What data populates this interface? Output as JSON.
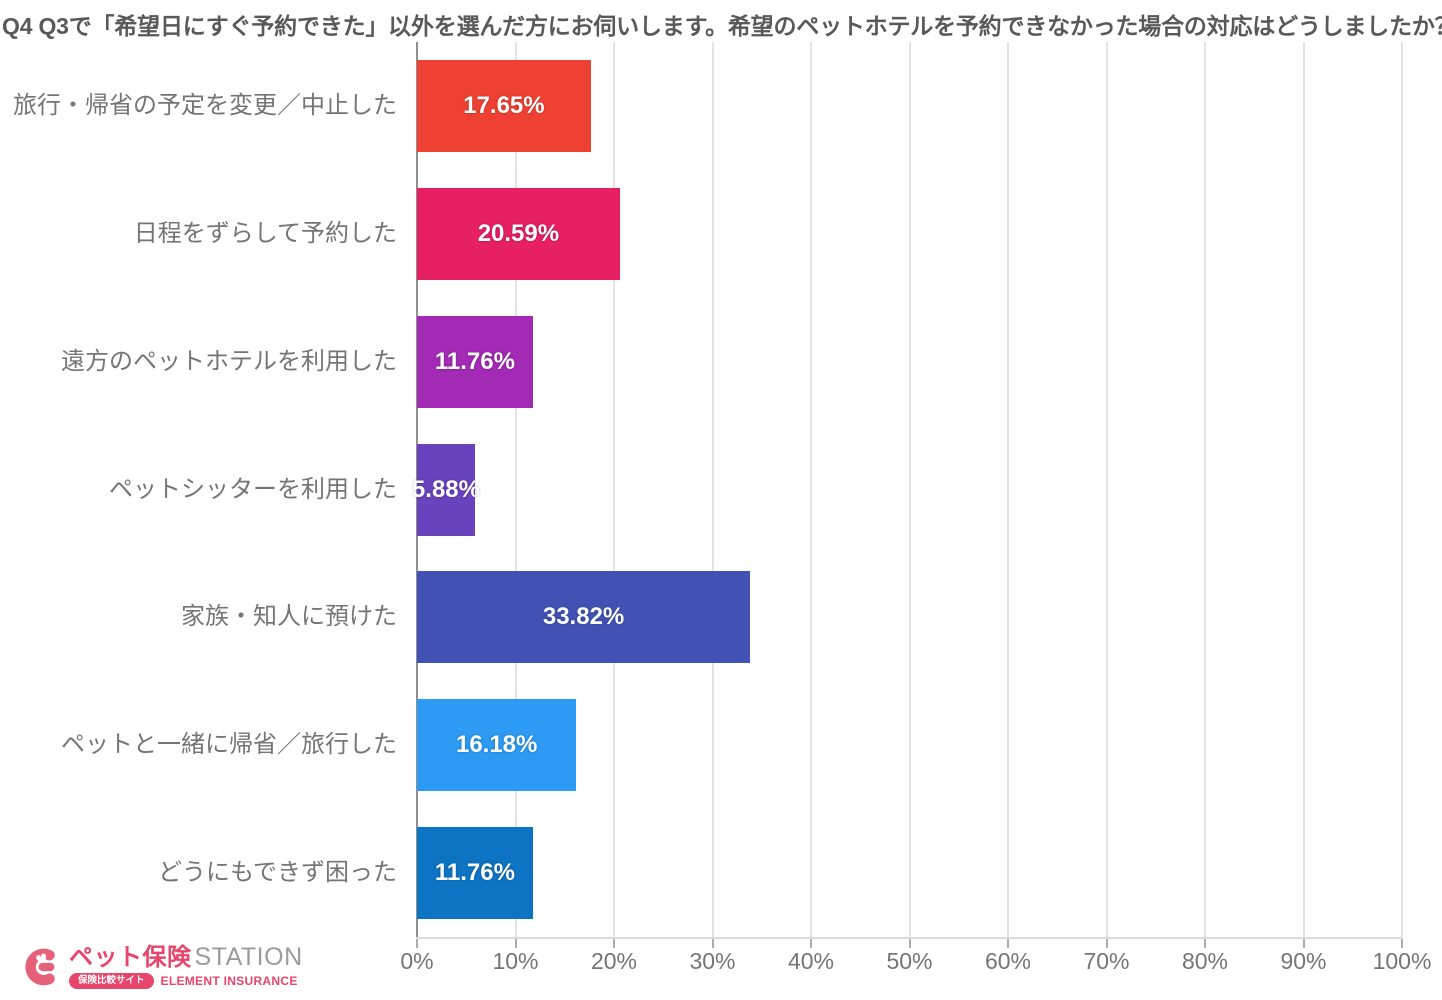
{
  "chart_data": {
    "type": "bar",
    "orientation": "horizontal",
    "title": "Q4 Q3で「希望日にすぐ予約できた」以外を選んだ方にお伺いします。希望のペットホテルを予約できなかった場合の対応はどうしましたか？",
    "categories": [
      "旅行・帰省の予定を変更／中止した",
      "日程をずらして予約した",
      "遠方のペットホテルを利用した",
      "ペットシッターを利用した",
      "家族・知人に預けた",
      "ペットと一緒に帰省／旅行した",
      "どうにもできず困った"
    ],
    "values": [
      17.65,
      20.59,
      11.76,
      5.88,
      33.82,
      16.18,
      11.76
    ],
    "value_labels": [
      "17.65%",
      "20.59%",
      "11.76%",
      "5.88%",
      "33.82%",
      "16.18%",
      "11.76%"
    ],
    "bar_colors": [
      "#EF4133",
      "#E72063",
      "#A22AB4",
      "#6943BE",
      "#4252B4",
      "#2D9BF3",
      "#0D74C4"
    ],
    "xlim": [
      0,
      100
    ],
    "x_ticks": [
      "0%",
      "10%",
      "20%",
      "30%",
      "40%",
      "50%",
      "60%",
      "70%",
      "80%",
      "90%",
      "100%"
    ],
    "grid": "vertical",
    "legend": "none",
    "xlabel": "",
    "ylabel": ""
  },
  "logo": {
    "brand_jp": "ペット保険",
    "brand_en": "STATION",
    "badge": "保険比較サイト",
    "company": "ELEMENT INSURANCE",
    "accent_color": "#E7456B"
  },
  "colors": {
    "title_text": "#595959",
    "label_text": "#757575",
    "grid_line": "#E4E4E4",
    "axis_line": "#8F8F8F",
    "value_text": "#FFFFFF"
  }
}
